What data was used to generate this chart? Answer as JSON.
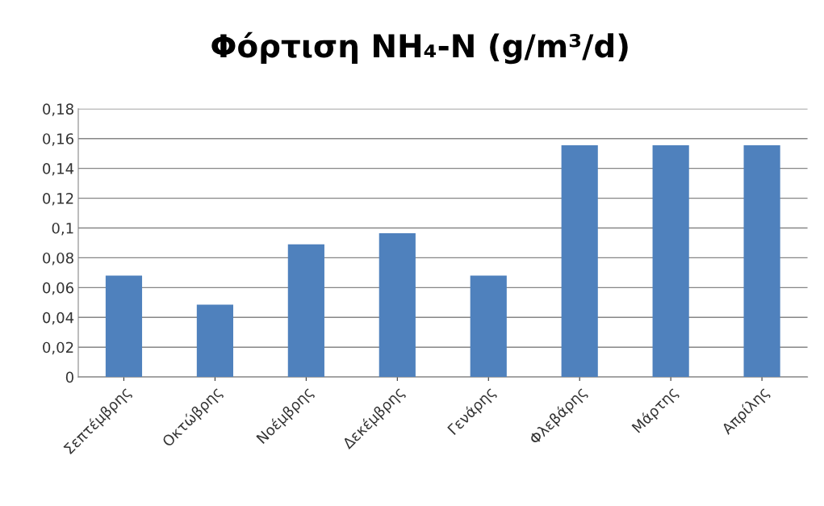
{
  "chart_data": {
    "type": "bar",
    "title": "Φόρτιση NH₄-N (g/m³/d)",
    "categories": [
      "Σεπτέμβρης",
      "Οκτώβρης",
      "Νοέμβρης",
      "Δεκέμβρης",
      "Γενάρης",
      "Φλεβάρης",
      "Μάρτης",
      "Απρίλης"
    ],
    "values": [
      0.068,
      0.0485,
      0.089,
      0.0965,
      0.068,
      0.1555,
      0.1555,
      0.1555
    ],
    "color": "#4f81bd",
    "ylim": [
      0,
      0.18
    ],
    "yticks": [
      0,
      {
        "value": 0.02,
        "label": "0,02"
      },
      {
        "value": 0.04,
        "label": "0,04"
      },
      {
        "value": 0.06,
        "label": "0,06"
      },
      {
        "value": 0.08,
        "label": "0,08"
      },
      {
        "value": 0.1,
        "label": "0,1"
      },
      {
        "value": 0.12,
        "label": "0,12"
      },
      {
        "value": 0.14,
        "label": "0,14"
      },
      {
        "value": 0.16,
        "label": "0,16"
      },
      {
        "value": 0.18,
        "label": "0,18"
      }
    ],
    "grid": "y"
  }
}
